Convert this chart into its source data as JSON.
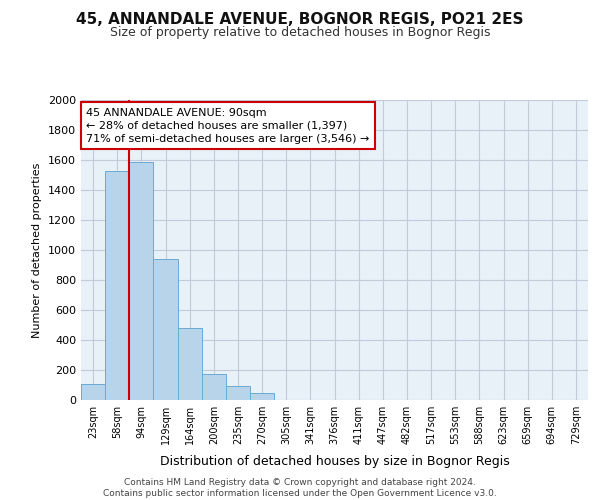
{
  "title1": "45, ANNANDALE AVENUE, BOGNOR REGIS, PO21 2ES",
  "title2": "Size of property relative to detached houses in Bognor Regis",
  "xlabel": "Distribution of detached houses by size in Bognor Regis",
  "ylabel": "Number of detached properties",
  "categories": [
    "23sqm",
    "58sqm",
    "94sqm",
    "129sqm",
    "164sqm",
    "200sqm",
    "235sqm",
    "270sqm",
    "305sqm",
    "341sqm",
    "376sqm",
    "411sqm",
    "447sqm",
    "482sqm",
    "517sqm",
    "553sqm",
    "588sqm",
    "623sqm",
    "659sqm",
    "694sqm",
    "729sqm"
  ],
  "values": [
    105,
    1530,
    1590,
    940,
    480,
    175,
    95,
    50,
    0,
    0,
    0,
    0,
    0,
    0,
    0,
    0,
    0,
    0,
    0,
    0,
    0
  ],
  "bar_color": "#b8d4ea",
  "bar_edge_color": "#6aaad4",
  "bg_color": "#e8f0f8",
  "vline_x": 1.5,
  "annotation_text": "45 ANNANDALE AVENUE: 90sqm\n← 28% of detached houses are smaller (1,397)\n71% of semi-detached houses are larger (3,546) →",
  "annotation_box_edge": "#cc0000",
  "vline_color": "#cc0000",
  "footer": "Contains HM Land Registry data © Crown copyright and database right 2024.\nContains public sector information licensed under the Open Government Licence v3.0.",
  "ylim": [
    0,
    2000
  ],
  "yticks": [
    0,
    200,
    400,
    600,
    800,
    1000,
    1200,
    1400,
    1600,
    1800,
    2000
  ]
}
